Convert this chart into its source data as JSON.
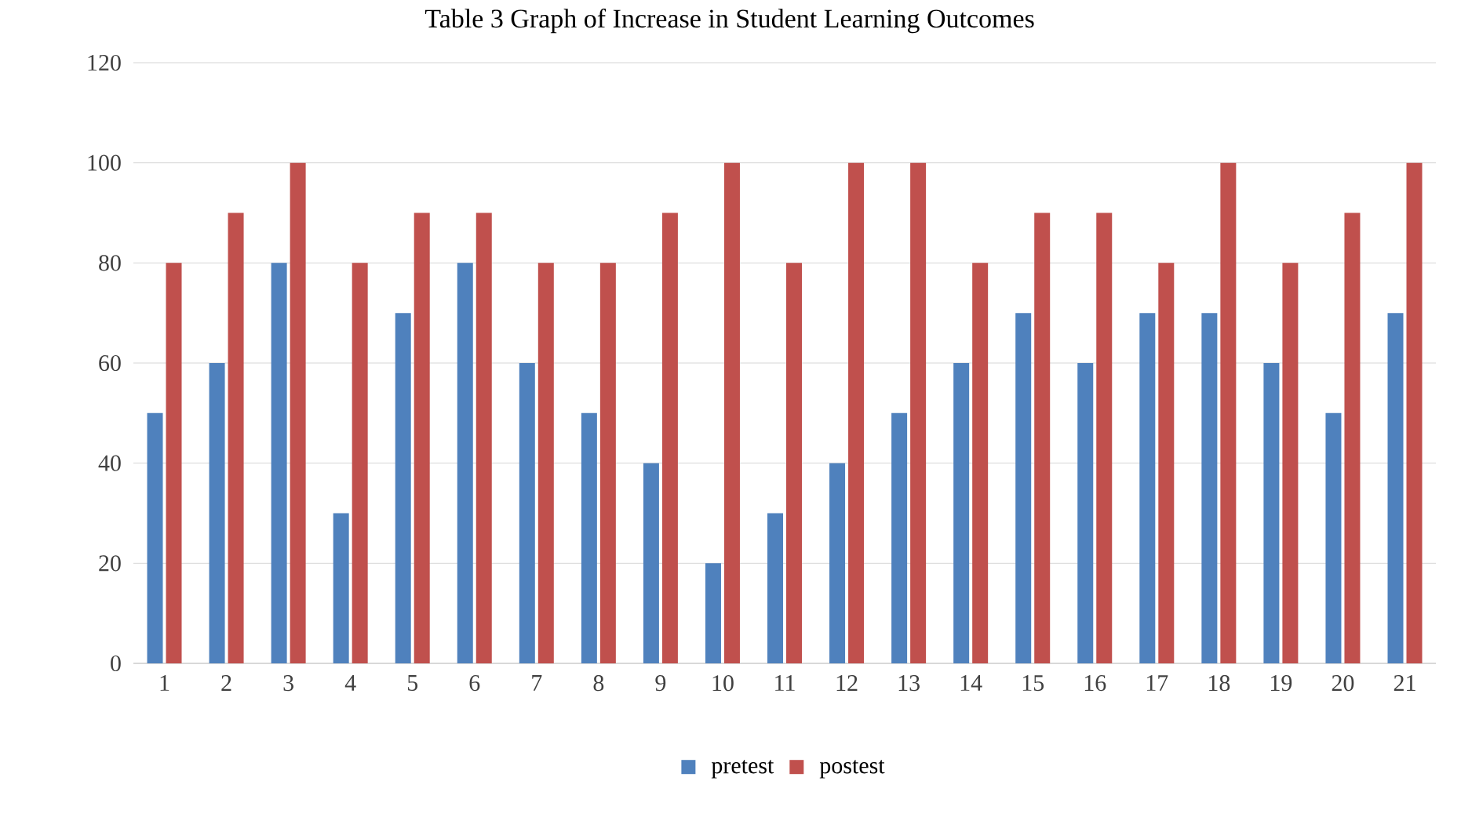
{
  "chart_data": {
    "type": "bar",
    "title": "Table 3 Graph of Increase in Student Learning Outcomes",
    "categories": [
      "1",
      "2",
      "3",
      "4",
      "5",
      "6",
      "7",
      "8",
      "9",
      "10",
      "11",
      "12",
      "13",
      "14",
      "15",
      "16",
      "17",
      "18",
      "19",
      "20",
      "21"
    ],
    "series": [
      {
        "name": "pretest",
        "color": "#4f81bd",
        "values": [
          50,
          60,
          80,
          30,
          70,
          80,
          60,
          50,
          40,
          20,
          30,
          40,
          50,
          60,
          70,
          60,
          70,
          70,
          60,
          50,
          70
        ]
      },
      {
        "name": "postest",
        "color": "#c0504d",
        "values": [
          80,
          90,
          100,
          80,
          90,
          90,
          80,
          80,
          90,
          100,
          80,
          100,
          100,
          80,
          90,
          90,
          80,
          100,
          80,
          90,
          100
        ]
      }
    ],
    "ylim": [
      0,
      120
    ],
    "yticks": [
      0,
      20,
      40,
      60,
      80,
      100,
      120
    ],
    "grid": "y",
    "legend": "bottom"
  }
}
